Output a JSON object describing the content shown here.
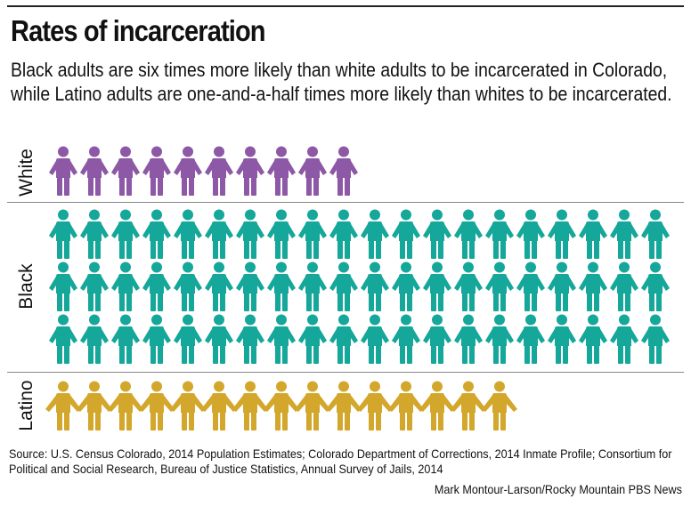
{
  "title": "Rates of incarceration",
  "subtitle": "Black adults are six times more likely than white adults to be incarcerated in Colorado, while Latino adults are one-and-a-half times more likely than whites to be incarcerated.",
  "source": "Source: U.S. Census Colorado, 2014 Population Estimates; Colorado Department of Corrections, 2014 Inmate Profile; Consortium for Political and Social Research, Bureau of Justice Statistics, Annual Survey of Jails, 2014",
  "credit": "Mark Montour-Larson/Rocky Mountain PBS News",
  "chart_data": {
    "type": "bar",
    "subtype": "pictogram",
    "title": "Rates of incarceration",
    "categories": [
      "White",
      "Black",
      "Latino"
    ],
    "values": [
      10,
      60,
      15
    ],
    "icons_per_row": 20,
    "colors": [
      "#8d58a6",
      "#14a79a",
      "#d3a72b"
    ],
    "icon": "person-icon"
  }
}
